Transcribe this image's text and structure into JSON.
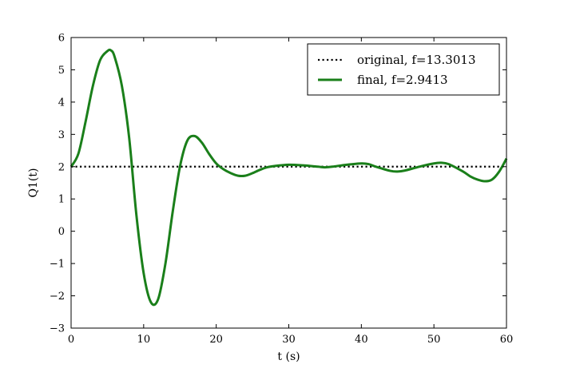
{
  "chart_data": {
    "type": "line",
    "xlabel": "t (s)",
    "ylabel": "Q1(t)",
    "xlim": [
      0,
      60
    ],
    "ylim": [
      -3,
      6
    ],
    "xticks": [
      "0",
      "10",
      "20",
      "30",
      "40",
      "50",
      "60"
    ],
    "yticks": [
      "−3",
      "−2",
      "−1",
      "0",
      "1",
      "2",
      "3",
      "4",
      "5",
      "6"
    ],
    "grid": false,
    "legend_position": "top-right",
    "series": [
      {
        "name": "original, f=13.3013",
        "color": "#000000",
        "style": "dotted",
        "x": [
          0,
          60
        ],
        "y": [
          2.0,
          2.0
        ]
      },
      {
        "name": "final, f=2.9413",
        "color": "#1a7f1a",
        "style": "solid",
        "x": [
          0,
          1,
          2,
          3,
          4,
          5,
          5.5,
          6,
          7,
          8,
          9,
          10,
          11,
          12,
          13,
          14,
          15,
          16,
          17,
          18,
          19,
          20,
          21,
          22,
          23,
          24,
          25,
          26,
          27,
          28,
          30,
          32,
          34,
          35,
          36,
          38,
          40,
          41,
          42,
          44,
          45,
          46,
          48,
          50,
          51,
          52,
          54,
          55,
          56,
          57,
          58,
          59,
          60
        ],
        "y": [
          2.0,
          2.4,
          3.4,
          4.5,
          5.3,
          5.58,
          5.6,
          5.4,
          4.5,
          2.9,
          0.5,
          -1.3,
          -2.2,
          -2.1,
          -1.0,
          0.6,
          2.0,
          2.8,
          2.95,
          2.75,
          2.4,
          2.1,
          1.92,
          1.8,
          1.72,
          1.72,
          1.8,
          1.9,
          1.98,
          2.02,
          2.06,
          2.04,
          2.0,
          1.98,
          2.0,
          2.06,
          2.1,
          2.08,
          2.0,
          1.87,
          1.85,
          1.88,
          2.0,
          2.1,
          2.12,
          2.08,
          1.85,
          1.7,
          1.6,
          1.55,
          1.6,
          1.85,
          2.25
        ]
      }
    ]
  }
}
